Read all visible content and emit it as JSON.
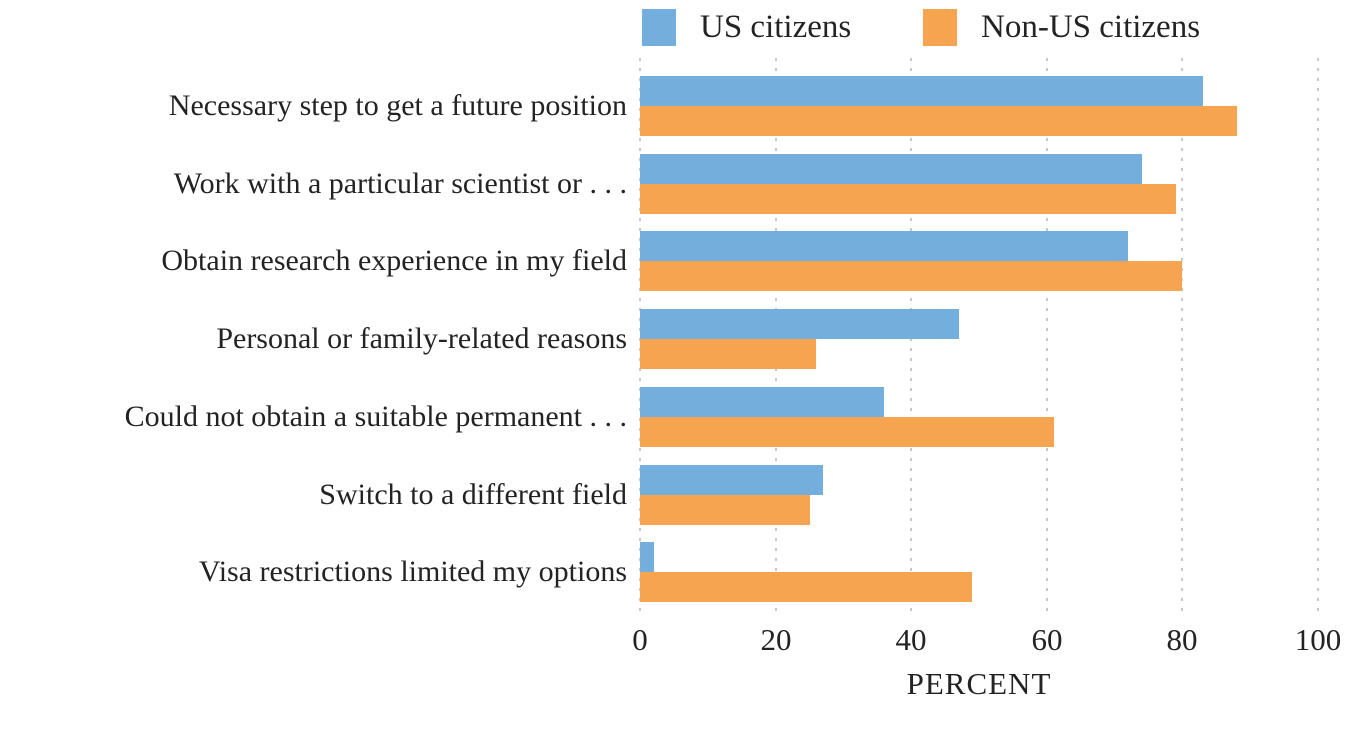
{
  "chart_data": {
    "type": "bar",
    "orientation": "horizontal",
    "title": "",
    "xlabel": "PERCENT",
    "ylabel": "",
    "xlim": [
      0,
      100
    ],
    "xticks": [
      0,
      20,
      40,
      60,
      80,
      100
    ],
    "grid": "vertical-dotted",
    "legend_position": "top",
    "categories": [
      "Necessary step to get a future position",
      "Work with a particular scientist or . . .",
      "Obtain research experience in my field",
      "Personal or family-related reasons",
      "Could not obtain a suitable permanent . . .",
      "Switch to a different field",
      "Visa restrictions limited my options"
    ],
    "series": [
      {
        "name": "US citizens",
        "color": "#73aedc",
        "values": [
          83,
          74,
          72,
          47,
          36,
          27,
          2
        ]
      },
      {
        "name": "Non-US citizens",
        "color": "#f6a44f",
        "values": [
          88,
          79,
          80,
          26,
          61,
          25,
          49
        ]
      }
    ]
  },
  "style_colors": {
    "grid": "#c8c8c8",
    "text": "#232323",
    "background": "#ffffff"
  }
}
